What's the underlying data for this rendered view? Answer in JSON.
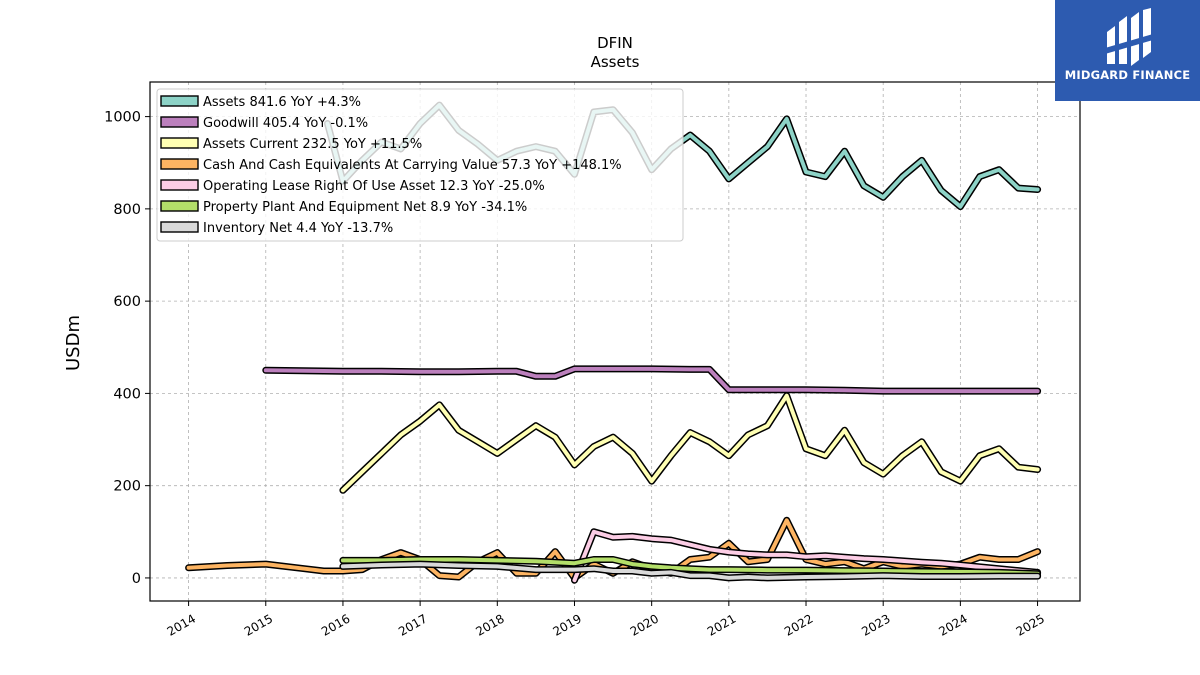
{
  "chart_data": {
    "type": "line",
    "title": "DFIN",
    "subtitle": "Assets",
    "ylabel": "USDm",
    "xlabel": "",
    "xlim": [
      2013.5,
      2025.55
    ],
    "ylim": [
      -50,
      1075
    ],
    "yticks": [
      0,
      200,
      400,
      600,
      800,
      1000
    ],
    "xticks": [
      "2014",
      "2015",
      "2016",
      "2017",
      "2018",
      "2019",
      "2020",
      "2021",
      "2022",
      "2023",
      "2024",
      "2025"
    ],
    "grid": true,
    "legend_position": "top-left",
    "series": [
      {
        "name": "Assets  841.6 YoY +4.3%",
        "color": "#8dd3c7",
        "x": [
          2015.8,
          2016.0,
          2016.25,
          2016.5,
          2016.75,
          2017.0,
          2017.25,
          2017.5,
          2017.75,
          2018.0,
          2018.25,
          2018.5,
          2018.75,
          2019.0,
          2019.25,
          2019.5,
          2019.75,
          2020.0,
          2020.25,
          2020.5,
          2020.75,
          2021.0,
          2021.25,
          2021.5,
          2021.75,
          2022.0,
          2022.25,
          2022.5,
          2022.75,
          2023.0,
          2023.25,
          2023.5,
          2023.75,
          2024.0,
          2024.25,
          2024.5,
          2024.75,
          2025.0
        ],
        "values": [
          985,
          860,
          905,
          945,
          930,
          985,
          1025,
          970,
          940,
          905,
          925,
          935,
          925,
          875,
          1010,
          1015,
          965,
          885,
          930,
          960,
          925,
          865,
          900,
          935,
          995,
          880,
          870,
          925,
          850,
          825,
          870,
          905,
          840,
          805,
          870,
          885,
          845,
          842
        ]
      },
      {
        "name": "Goodwill  405.4 YoY -0.1%",
        "color": "#bc80bd",
        "x": [
          2015.0,
          2015.5,
          2016.0,
          2016.5,
          2017.0,
          2017.5,
          2018.0,
          2018.25,
          2018.5,
          2018.75,
          2019.0,
          2019.5,
          2020.0,
          2020.5,
          2020.75,
          2021.0,
          2021.5,
          2022.0,
          2022.5,
          2023.0,
          2023.5,
          2024.0,
          2024.5,
          2025.0
        ],
        "values": [
          450,
          449,
          448,
          448,
          447,
          447,
          448,
          448,
          437,
          437,
          453,
          453,
          453,
          452,
          452,
          408,
          408,
          408,
          407,
          405,
          405,
          405,
          405,
          405
        ]
      },
      {
        "name": "Assets Current  232.5 YoY +11.5%",
        "color": "#ffffb3",
        "x": [
          2016.0,
          2016.25,
          2016.5,
          2016.75,
          2017.0,
          2017.25,
          2017.5,
          2017.75,
          2018.0,
          2018.25,
          2018.5,
          2018.75,
          2019.0,
          2019.25,
          2019.5,
          2019.75,
          2020.0,
          2020.25,
          2020.5,
          2020.75,
          2021.0,
          2021.25,
          2021.5,
          2021.75,
          2022.0,
          2022.25,
          2022.5,
          2022.75,
          2023.0,
          2023.25,
          2023.5,
          2023.75,
          2024.0,
          2024.25,
          2024.5,
          2024.75,
          2025.0
        ],
        "values": [
          190,
          230,
          270,
          310,
          340,
          375,
          320,
          295,
          270,
          300,
          330,
          305,
          245,
          285,
          305,
          270,
          210,
          265,
          315,
          295,
          265,
          310,
          330,
          395,
          280,
          265,
          320,
          250,
          225,
          265,
          295,
          230,
          210,
          265,
          280,
          240,
          235
        ]
      },
      {
        "name": "Cash And Cash Equivalents At Carrying Value  57.3 YoY +148.1%",
        "color": "#fdb462",
        "x": [
          2014.0,
          2014.5,
          2015.0,
          2015.5,
          2015.75,
          2016.0,
          2016.25,
          2016.5,
          2016.75,
          2017.0,
          2017.25,
          2017.5,
          2017.75,
          2018.0,
          2018.25,
          2018.5,
          2018.75,
          2019.0,
          2019.25,
          2019.5,
          2019.75,
          2020.0,
          2020.25,
          2020.5,
          2020.75,
          2021.0,
          2021.25,
          2021.5,
          2021.75,
          2022.0,
          2022.25,
          2022.5,
          2022.75,
          2023.0,
          2023.25,
          2023.5,
          2023.75,
          2024.0,
          2024.25,
          2024.5,
          2024.75,
          2025.0
        ],
        "values": [
          22,
          27,
          30,
          20,
          15,
          15,
          18,
          40,
          55,
          40,
          5,
          2,
          35,
          55,
          10,
          10,
          57,
          0,
          30,
          10,
          35,
          20,
          10,
          40,
          45,
          75,
          35,
          40,
          125,
          40,
          30,
          35,
          20,
          35,
          25,
          30,
          25,
          30,
          45,
          40,
          40,
          57
        ]
      },
      {
        "name": "Operating Lease Right Of Use Asset  12.3 YoY -25.0%",
        "color": "#fccde5",
        "x": [
          2019.0,
          2019.25,
          2019.5,
          2019.75,
          2020.0,
          2020.25,
          2020.5,
          2020.75,
          2021.0,
          2021.25,
          2021.5,
          2021.75,
          2022.0,
          2022.25,
          2022.5,
          2022.75,
          2023.0,
          2023.25,
          2023.5,
          2023.75,
          2024.0,
          2024.25,
          2024.5,
          2024.75,
          2025.0
        ],
        "values": [
          -5,
          100,
          88,
          90,
          85,
          82,
          72,
          62,
          56,
          52,
          50,
          50,
          46,
          48,
          45,
          42,
          40,
          37,
          34,
          32,
          28,
          24,
          20,
          16,
          12
        ]
      },
      {
        "name": "Property Plant And Equipment Net  8.9 YoY -34.1%",
        "color": "#b3de69",
        "x": [
          2016.0,
          2016.5,
          2017.0,
          2017.5,
          2018.0,
          2018.5,
          2019.0,
          2019.25,
          2019.5,
          2019.75,
          2020.0,
          2020.25,
          2020.5,
          2020.75,
          2021.0,
          2021.5,
          2022.0,
          2022.5,
          2023.0,
          2023.5,
          2024.0,
          2024.5,
          2025.0
        ],
        "values": [
          38,
          38,
          40,
          40,
          38,
          36,
          32,
          40,
          40,
          30,
          25,
          22,
          20,
          18,
          18,
          17,
          17,
          16,
          15,
          14,
          13,
          12,
          9
        ]
      },
      {
        "name": "Inventory Net  4.4 YoY -13.7%",
        "color": "#d9d9d9",
        "x": [
          2016.0,
          2016.5,
          2017.0,
          2017.5,
          2018.0,
          2018.5,
          2019.0,
          2019.25,
          2019.5,
          2019.75,
          2020.0,
          2020.25,
          2020.5,
          2020.75,
          2021.0,
          2021.25,
          2021.5,
          2022.0,
          2022.5,
          2023.0,
          2023.5,
          2024.0,
          2024.5,
          2025.0
        ],
        "values": [
          25,
          28,
          30,
          27,
          25,
          18,
          18,
          20,
          15,
          15,
          10,
          12,
          5,
          5,
          0,
          2,
          0,
          2,
          3,
          5,
          3,
          3,
          4,
          4
        ]
      }
    ]
  },
  "logo": {
    "text": "MIDGARD FINANCE"
  }
}
